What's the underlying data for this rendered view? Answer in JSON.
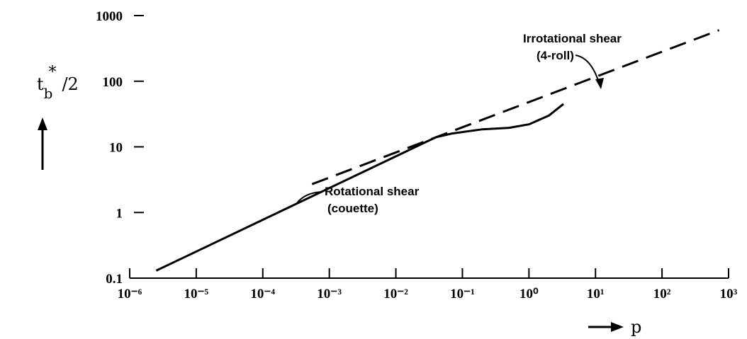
{
  "chart_data": {
    "type": "line",
    "xscale": "log",
    "yscale": "log",
    "xlim": [
      1e-06,
      1000
    ],
    "ylim": [
      0.1,
      1000
    ],
    "xticks": [
      {
        "value": 1e-06,
        "label": "10⁻⁶"
      },
      {
        "value": 1e-05,
        "label": "10⁻⁵"
      },
      {
        "value": 0.0001,
        "label": "10⁻⁴"
      },
      {
        "value": 0.001,
        "label": "10⁻³"
      },
      {
        "value": 0.01,
        "label": "10⁻²"
      },
      {
        "value": 0.1,
        "label": "10⁻¹"
      },
      {
        "value": 1,
        "label": "10⁰"
      },
      {
        "value": 10,
        "label": "10¹"
      },
      {
        "value": 100,
        "label": "10²"
      },
      {
        "value": 1000,
        "label": "10³"
      }
    ],
    "yticks": [
      0.1,
      1,
      10,
      100,
      1000
    ],
    "xlabel": "p",
    "ylabel": {
      "base": "t",
      "sub": "b",
      "sup": "*",
      "rest": "/2"
    },
    "series": [
      {
        "name": "Rotational shear",
        "note": "(couette)",
        "color": "#000",
        "dashed": false,
        "x": [
          2.5e-06,
          0.04,
          0.07,
          0.2,
          0.5,
          1,
          2,
          3.3
        ],
        "values": [
          0.13,
          14,
          16,
          18.5,
          19.5,
          22,
          30,
          45
        ]
      },
      {
        "name": "Irrotational shear",
        "note": "(4-roll)",
        "color": "#000",
        "dashed": true,
        "x": [
          0.00055,
          720
        ],
        "values": [
          2.7,
          600
        ]
      }
    ]
  }
}
